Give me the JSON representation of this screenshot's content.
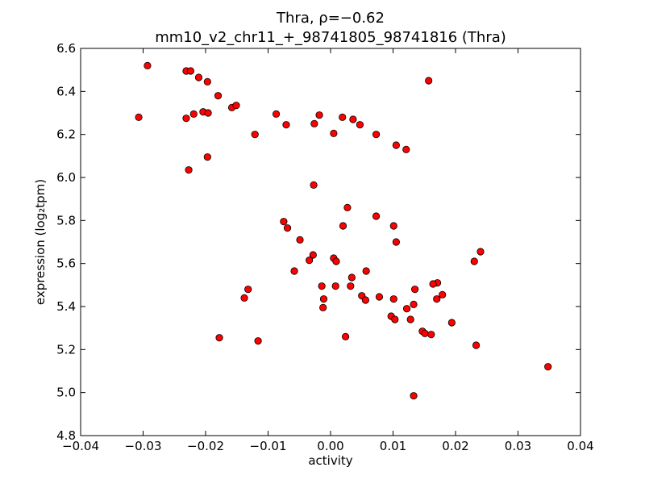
{
  "chart_data": {
    "type": "scatter",
    "title_line1": "Thra, ρ=−0.62",
    "title_line2": "mm10_v2_chr11_+_98741805_98741816 (Thra)",
    "xlabel": "activity",
    "ylabel": "expression (log₂tpm)",
    "xlim": [
      -0.04,
      0.04
    ],
    "ylim": [
      4.8,
      6.6
    ],
    "xticks": [
      -0.04,
      -0.03,
      -0.02,
      -0.01,
      0.0,
      0.01,
      0.02,
      0.03,
      0.04
    ],
    "xtick_labels": [
      "−0.04",
      "−0.03",
      "−0.02",
      "−0.01",
      "0.00",
      "0.01",
      "0.02",
      "0.03",
      "0.04"
    ],
    "yticks": [
      4.8,
      5.0,
      5.2,
      5.4,
      5.6,
      5.8,
      6.0,
      6.2,
      6.4,
      6.6
    ],
    "ytick_labels": [
      "4.8",
      "5.0",
      "5.2",
      "5.4",
      "5.6",
      "5.8",
      "6.0",
      "6.2",
      "6.4",
      "6.6"
    ],
    "grid": false,
    "marker_color": "#ff0000",
    "marker_edge": "#000000",
    "points": [
      {
        "x": -0.0293,
        "y": 6.52
      },
      {
        "x": -0.0307,
        "y": 6.28
      },
      {
        "x": -0.0231,
        "y": 6.495
      },
      {
        "x": -0.0224,
        "y": 6.495
      },
      {
        "x": -0.0211,
        "y": 6.465
      },
      {
        "x": -0.0197,
        "y": 6.445
      },
      {
        "x": -0.018,
        "y": 6.38
      },
      {
        "x": -0.0158,
        "y": 6.325
      },
      {
        "x": -0.0151,
        "y": 6.335
      },
      {
        "x": -0.0231,
        "y": 6.275
      },
      {
        "x": -0.0219,
        "y": 6.295
      },
      {
        "x": -0.0204,
        "y": 6.305
      },
      {
        "x": -0.0196,
        "y": 6.3
      },
      {
        "x": -0.0121,
        "y": 6.2
      },
      {
        "x": -0.0087,
        "y": 6.295
      },
      {
        "x": -0.0071,
        "y": 6.245
      },
      {
        "x": -0.0026,
        "y": 6.25
      },
      {
        "x": -0.0018,
        "y": 6.29
      },
      {
        "x": 0.0005,
        "y": 6.205
      },
      {
        "x": 0.0019,
        "y": 6.28
      },
      {
        "x": 0.0036,
        "y": 6.27
      },
      {
        "x": 0.0047,
        "y": 6.245
      },
      {
        "x": 0.0073,
        "y": 6.2
      },
      {
        "x": 0.0105,
        "y": 6.15
      },
      {
        "x": 0.0121,
        "y": 6.13
      },
      {
        "x": 0.0157,
        "y": 6.45
      },
      {
        "x": -0.0197,
        "y": 6.095
      },
      {
        "x": -0.0227,
        "y": 6.035
      },
      {
        "x": -0.0027,
        "y": 5.965
      },
      {
        "x": 0.0027,
        "y": 5.86
      },
      {
        "x": 0.0073,
        "y": 5.82
      },
      {
        "x": -0.0075,
        "y": 5.795
      },
      {
        "x": 0.002,
        "y": 5.775
      },
      {
        "x": 0.0101,
        "y": 5.775
      },
      {
        "x": -0.0069,
        "y": 5.765
      },
      {
        "x": -0.0049,
        "y": 5.71
      },
      {
        "x": 0.0105,
        "y": 5.7
      },
      {
        "x": -0.0028,
        "y": 5.64
      },
      {
        "x": -0.0034,
        "y": 5.615
      },
      {
        "x": 0.0005,
        "y": 5.625
      },
      {
        "x": 0.0009,
        "y": 5.61
      },
      {
        "x": -0.0058,
        "y": 5.565
      },
      {
        "x": 0.0057,
        "y": 5.565
      },
      {
        "x": 0.0034,
        "y": 5.535
      },
      {
        "x": 0.024,
        "y": 5.655
      },
      {
        "x": 0.023,
        "y": 5.61
      },
      {
        "x": 0.0171,
        "y": 5.51
      },
      {
        "x": 0.0164,
        "y": 5.505
      },
      {
        "x": -0.0014,
        "y": 5.495
      },
      {
        "x": 0.0008,
        "y": 5.495
      },
      {
        "x": 0.0032,
        "y": 5.495
      },
      {
        "x": -0.0132,
        "y": 5.48
      },
      {
        "x": 0.0135,
        "y": 5.48
      },
      {
        "x": 0.0179,
        "y": 5.455
      },
      {
        "x": -0.0138,
        "y": 5.44
      },
      {
        "x": -0.0011,
        "y": 5.435
      },
      {
        "x": 0.005,
        "y": 5.45
      },
      {
        "x": 0.0056,
        "y": 5.43
      },
      {
        "x": 0.0078,
        "y": 5.445
      },
      {
        "x": 0.0101,
        "y": 5.435
      },
      {
        "x": 0.017,
        "y": 5.435
      },
      {
        "x": 0.0133,
        "y": 5.41
      },
      {
        "x": -0.0012,
        "y": 5.395
      },
      {
        "x": 0.0122,
        "y": 5.39
      },
      {
        "x": 0.0097,
        "y": 5.355
      },
      {
        "x": 0.0103,
        "y": 5.34
      },
      {
        "x": 0.0128,
        "y": 5.34
      },
      {
        "x": 0.0194,
        "y": 5.325
      },
      {
        "x": 0.0147,
        "y": 5.285
      },
      {
        "x": 0.0151,
        "y": 5.275
      },
      {
        "x": 0.0161,
        "y": 5.27
      },
      {
        "x": -0.0178,
        "y": 5.255
      },
      {
        "x": 0.0024,
        "y": 5.26
      },
      {
        "x": -0.0116,
        "y": 5.24
      },
      {
        "x": 0.0233,
        "y": 5.22
      },
      {
        "x": 0.0348,
        "y": 5.12
      },
      {
        "x": 0.0133,
        "y": 4.985
      }
    ]
  }
}
